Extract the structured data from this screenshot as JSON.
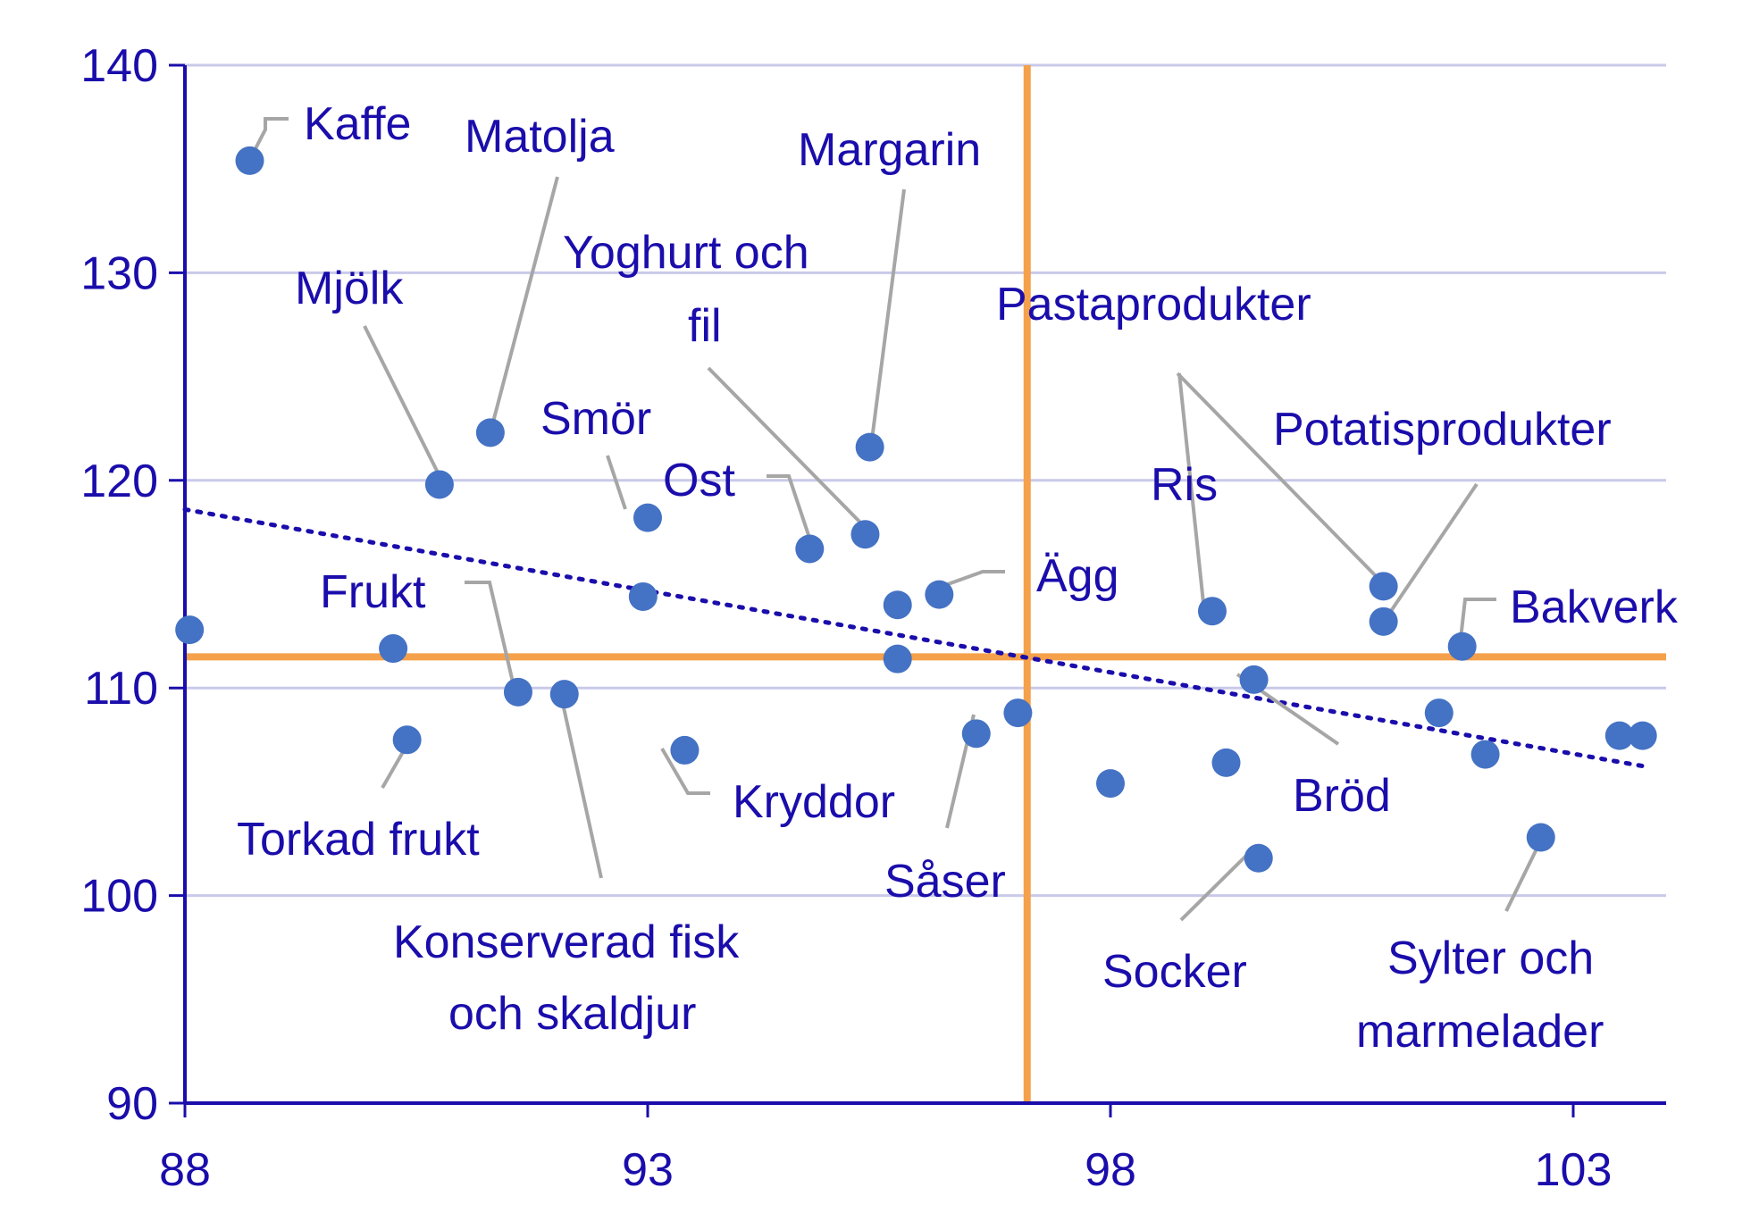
{
  "chart_data": {
    "type": "scatter",
    "title": "",
    "xlabel": "",
    "ylabel": "",
    "xlim": [
      88,
      104
    ],
    "ylim": [
      90,
      140
    ],
    "x_ticks": [
      88,
      93,
      98,
      103
    ],
    "y_ticks": [
      90,
      100,
      110,
      120,
      130,
      140
    ],
    "grid": "horizontal",
    "reference_lines": {
      "vertical_x": 97.1,
      "horizontal_y": 111.5
    },
    "trend_line": {
      "style": "dotted",
      "from": [
        88,
        118.6
      ],
      "to": [
        103.8,
        106.2
      ]
    },
    "points": [
      {
        "x": 88.7,
        "y": 135.4
      },
      {
        "x": 88.05,
        "y": 112.8
      },
      {
        "x": 90.75,
        "y": 119.8
      },
      {
        "x": 91.3,
        "y": 122.3
      },
      {
        "x": 93.0,
        "y": 118.2
      },
      {
        "x": 92.95,
        "y": 114.4
      },
      {
        "x": 90.25,
        "y": 111.9
      },
      {
        "x": 91.6,
        "y": 109.8
      },
      {
        "x": 92.1,
        "y": 109.7
      },
      {
        "x": 90.4,
        "y": 107.5
      },
      {
        "x": 93.4,
        "y": 107.0
      },
      {
        "x": 94.75,
        "y": 116.7
      },
      {
        "x": 95.35,
        "y": 117.4
      },
      {
        "x": 95.4,
        "y": 121.6
      },
      {
        "x": 95.7,
        "y": 114.0
      },
      {
        "x": 96.15,
        "y": 114.5
      },
      {
        "x": 95.7,
        "y": 111.4
      },
      {
        "x": 96.55,
        "y": 107.8
      },
      {
        "x": 97.0,
        "y": 108.8
      },
      {
        "x": 98.0,
        "y": 105.4
      },
      {
        "x": 99.1,
        "y": 113.7
      },
      {
        "x": 99.25,
        "y": 106.4
      },
      {
        "x": 99.55,
        "y": 110.4
      },
      {
        "x": 99.6,
        "y": 101.8
      },
      {
        "x": 100.95,
        "y": 114.9
      },
      {
        "x": 100.95,
        "y": 113.2
      },
      {
        "x": 101.55,
        "y": 108.8
      },
      {
        "x": 101.8,
        "y": 112.0
      },
      {
        "x": 102.05,
        "y": 106.8
      },
      {
        "x": 102.65,
        "y": 102.8
      },
      {
        "x": 103.5,
        "y": 107.7
      },
      {
        "x": 103.75,
        "y": 107.7
      }
    ],
    "annotations": [
      {
        "text": "Kaffe"
      },
      {
        "text": "Matolja"
      },
      {
        "text": "Margarin"
      },
      {
        "text": "Mjölk"
      },
      {
        "text": "Yoghurt och"
      },
      {
        "text": "fil"
      },
      {
        "text": "Smör"
      },
      {
        "text": "Ost"
      },
      {
        "text": "Pastaprodukter"
      },
      {
        "text": "Potatisprodukter"
      },
      {
        "text": "Ris"
      },
      {
        "text": "Ägg"
      },
      {
        "text": "Frukt"
      },
      {
        "text": "Bakverk"
      },
      {
        "text": "Kryddor"
      },
      {
        "text": "Bröd"
      },
      {
        "text": "Torkad frukt"
      },
      {
        "text": "Såser"
      },
      {
        "text": "Konserverad fisk"
      },
      {
        "text": "och skaldjur"
      },
      {
        "text": "Socker"
      },
      {
        "text": "Sylter och"
      },
      {
        "text": "marmelader"
      }
    ]
  },
  "colors": {
    "axis": "#1a0dab",
    "text": "#1a0dab",
    "grid": "#c9c9ea",
    "points": "#4472c4",
    "reference": "#f5a04a",
    "trend": "#1a0dab",
    "leader": "#a6a6a6"
  }
}
